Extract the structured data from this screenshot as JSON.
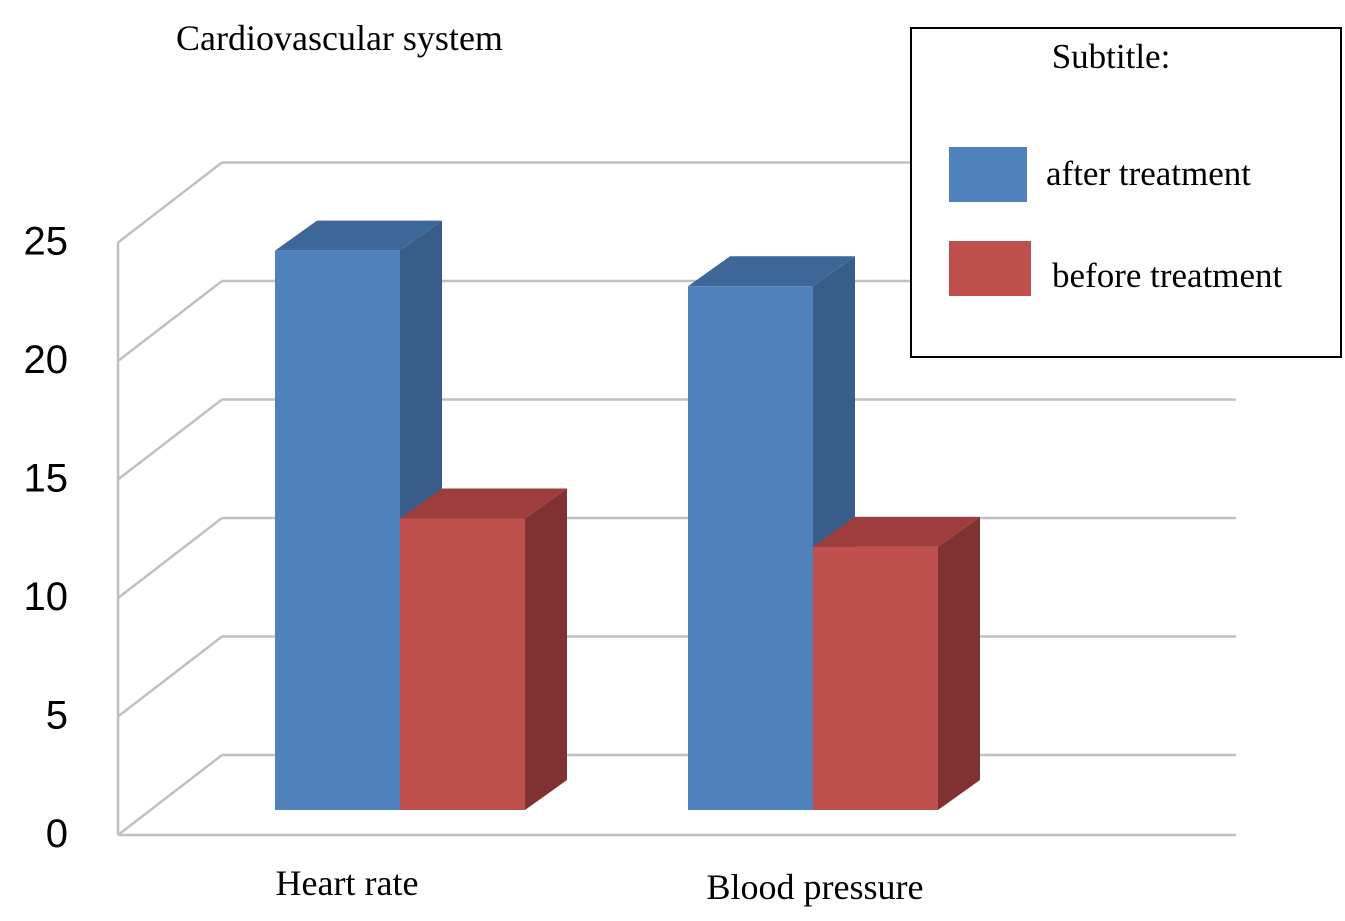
{
  "chart_data": {
    "type": "bar",
    "title": "Cardiovascular system",
    "categories": [
      "Heart rate",
      "Blood pressure"
    ],
    "series": [
      {
        "name": "after treatment",
        "values": [
          23.6,
          22.1
        ],
        "color": "#4F81BD",
        "side_color": "#385D8A",
        "top_color": "#3E6799"
      },
      {
        "name": "before treatment",
        "values": [
          12.3,
          11.1
        ],
        "color": "#C0504D",
        "side_color": "#7F3231",
        "top_color": "#9E3E3C"
      }
    ],
    "ylim": [
      0,
      25
    ],
    "yticks": [
      "0",
      "5",
      "10",
      "15",
      "20",
      "25"
    ],
    "grid": true,
    "legend": {
      "title": "Subtitle:",
      "placement": "top-right"
    }
  }
}
